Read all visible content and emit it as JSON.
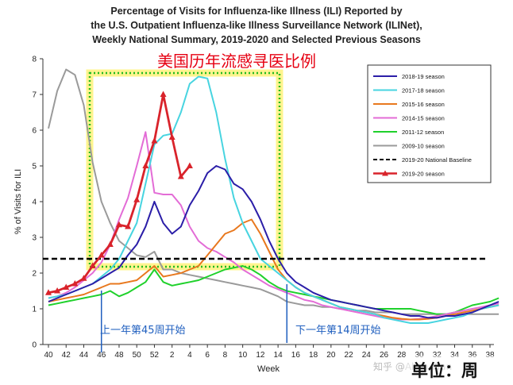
{
  "chart_data": {
    "type": "line",
    "title": "Percentage of Visits for Influenza-like Illness (ILI) Reported by",
    "title_line2": "the U.S. Outpatient Influenza-like Illness Surveillance Network (ILINet),",
    "title_line3": "Weekly National Summary, 2019-2020 and Selected Previous Seasons",
    "overlay_title": "美国历年流感寻医比例",
    "xlabel": "Week",
    "ylabel": "% of Visits for ILI",
    "ylim": [
      0,
      8
    ],
    "y_ticks": [
      "0",
      "1",
      "2",
      "3",
      "4",
      "5",
      "6",
      "7",
      "8"
    ],
    "x_ticks": [
      "40",
      "42",
      "44",
      "46",
      "48",
      "50",
      "52",
      "2",
      "4",
      "6",
      "8",
      "10",
      "12",
      "14",
      "16",
      "18",
      "20",
      "22",
      "24",
      "26",
      "28",
      "30",
      "32",
      "34",
      "36",
      "38"
    ],
    "weeks": [
      40,
      41,
      42,
      43,
      44,
      45,
      46,
      47,
      48,
      49,
      50,
      51,
      52,
      1,
      2,
      3,
      4,
      5,
      6,
      7,
      8,
      9,
      10,
      11,
      12,
      13,
      14,
      15,
      16,
      17,
      18,
      19,
      20,
      21,
      22,
      23,
      24,
      25,
      26,
      27,
      28,
      29,
      30,
      31,
      32,
      33,
      34,
      35,
      36,
      37,
      38,
      39
    ],
    "grid": false,
    "legend_position": "top-right",
    "series": [
      {
        "name": "2018-19 season",
        "color": "#2b1ea8",
        "values": [
          1.2,
          1.3,
          1.4,
          1.5,
          1.6,
          1.7,
          1.85,
          2.0,
          2.15,
          2.5,
          2.8,
          3.3,
          4.0,
          3.4,
          3.1,
          3.3,
          3.9,
          4.3,
          4.8,
          5.0,
          4.9,
          4.5,
          4.35,
          4.0,
          3.5,
          2.9,
          2.4,
          2.0,
          1.75,
          1.6,
          1.45,
          1.35,
          1.25,
          1.2,
          1.15,
          1.1,
          1.05,
          1.0,
          0.95,
          0.9,
          0.85,
          0.8,
          0.8,
          0.75,
          0.75,
          0.8,
          0.8,
          0.85,
          0.9,
          1.0,
          1.1,
          1.2
        ]
      },
      {
        "name": "2017-18 season",
        "color": "#47d4e0",
        "values": [
          1.3,
          1.35,
          1.4,
          1.5,
          1.6,
          1.7,
          1.9,
          2.1,
          2.4,
          2.9,
          3.4,
          4.5,
          5.6,
          5.85,
          5.9,
          6.5,
          7.3,
          7.5,
          7.45,
          6.5,
          5.2,
          4.1,
          3.4,
          2.9,
          2.4,
          2.2,
          2.0,
          1.8,
          1.6,
          1.45,
          1.35,
          1.25,
          1.15,
          1.05,
          1.0,
          0.95,
          0.9,
          0.85,
          0.75,
          0.7,
          0.65,
          0.6,
          0.6,
          0.6,
          0.65,
          0.7,
          0.75,
          0.8,
          0.9,
          1.0,
          1.05,
          1.1
        ]
      },
      {
        "name": "2015-16 season",
        "color": "#e8781e",
        "values": [
          1.2,
          1.25,
          1.3,
          1.35,
          1.4,
          1.5,
          1.6,
          1.7,
          1.7,
          1.75,
          1.8,
          2.0,
          2.2,
          1.9,
          1.95,
          2.0,
          2.1,
          2.2,
          2.5,
          2.8,
          3.1,
          3.2,
          3.4,
          3.5,
          3.1,
          2.6,
          2.1,
          1.8,
          1.6,
          1.45,
          1.35,
          1.25,
          1.15,
          1.05,
          1.0,
          0.95,
          0.9,
          0.85,
          0.8,
          0.75,
          0.72,
          0.7,
          0.7,
          0.72,
          0.75,
          0.8,
          0.85,
          0.9,
          0.95,
          1.0,
          1.05,
          1.1
        ]
      },
      {
        "name": "2014-15 season",
        "color": "#e36cd6",
        "values": [
          1.3,
          1.35,
          1.45,
          1.6,
          1.8,
          2.0,
          2.3,
          2.8,
          3.5,
          4.1,
          5.0,
          5.95,
          4.25,
          4.2,
          4.2,
          3.9,
          3.3,
          2.9,
          2.7,
          2.6,
          2.45,
          2.3,
          2.1,
          1.95,
          1.8,
          1.65,
          1.55,
          1.45,
          1.35,
          1.25,
          1.2,
          1.1,
          1.05,
          1.0,
          0.95,
          0.9,
          0.85,
          0.8,
          0.75,
          0.72,
          0.7,
          0.7,
          0.72,
          0.75,
          0.8,
          0.85,
          0.9,
          0.95,
          1.0,
          1.05,
          1.1,
          1.15
        ]
      },
      {
        "name": "2011-12 season",
        "color": "#1fd12b",
        "values": [
          1.1,
          1.15,
          1.2,
          1.25,
          1.3,
          1.35,
          1.4,
          1.5,
          1.35,
          1.45,
          1.6,
          1.75,
          2.1,
          1.75,
          1.65,
          1.7,
          1.75,
          1.8,
          1.9,
          2.0,
          2.1,
          2.15,
          2.2,
          2.1,
          1.95,
          1.75,
          1.6,
          1.5,
          1.45,
          1.4,
          1.35,
          1.3,
          1.25,
          1.2,
          1.15,
          1.1,
          1.05,
          1.0,
          1.0,
          1.0,
          1.0,
          1.0,
          0.95,
          0.9,
          0.85,
          0.85,
          0.9,
          1.0,
          1.1,
          1.15,
          1.2,
          1.3
        ]
      },
      {
        "name": "2009-10 season",
        "color": "#9a9a9a",
        "values": [
          6.05,
          7.1,
          7.7,
          7.55,
          6.7,
          5.1,
          4.0,
          3.4,
          2.9,
          2.7,
          2.5,
          2.45,
          2.6,
          2.1,
          2.1,
          2.0,
          1.95,
          1.9,
          1.85,
          1.8,
          1.75,
          1.7,
          1.65,
          1.6,
          1.55,
          1.45,
          1.35,
          1.2,
          1.15,
          1.1,
          1.1,
          1.05,
          1.05,
          1.0,
          1.0,
          0.95,
          0.95,
          0.9,
          0.9,
          0.9,
          0.85,
          0.85,
          0.85,
          0.85,
          0.85,
          0.85,
          0.85,
          0.85,
          0.85,
          0.85,
          0.85,
          0.85
        ]
      },
      {
        "name": "2019-20 National Baseline",
        "color": "#000000",
        "dashed": true,
        "baseline": 2.4
      },
      {
        "name": "2019-20 season",
        "color": "#d9232b",
        "marker": "triangle",
        "values": [
          1.45,
          1.5,
          1.6,
          1.7,
          1.85,
          2.2,
          2.5,
          2.8,
          3.35,
          3.3,
          4.05,
          5.0,
          5.7,
          7.0,
          5.8,
          4.7,
          5.0
        ]
      }
    ],
    "annotations": {
      "left_marker_week": "46",
      "left_marker_text": "上一年第45周开始",
      "right_marker_week": "15",
      "right_marker_text": "下一年第14周开始"
    },
    "unit_label": "单位：周",
    "watermark": "知乎 @Alvin Wan",
    "highlight_color": "#ffef5c",
    "box_color": "#22bb22"
  }
}
